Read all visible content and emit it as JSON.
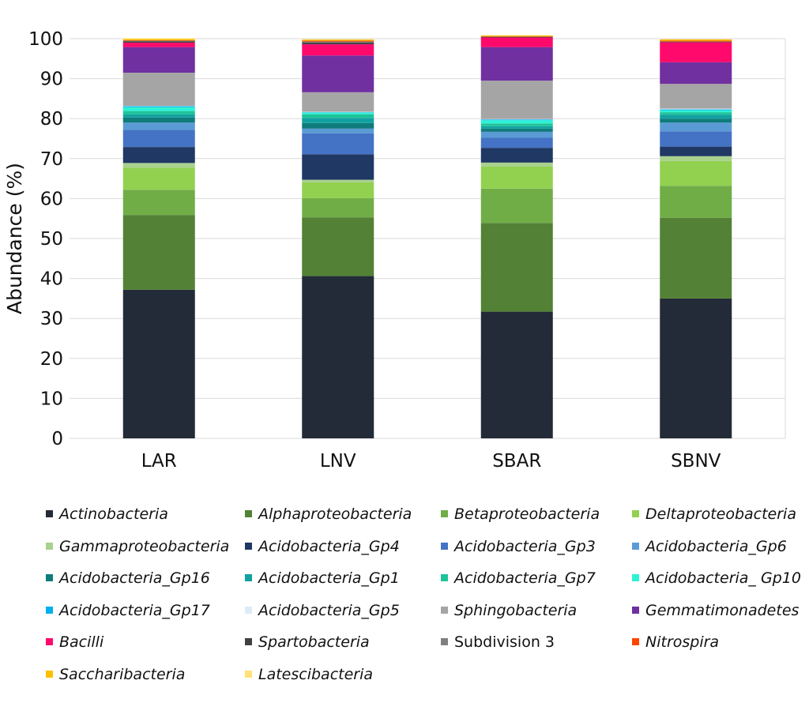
{
  "chart_data": {
    "type": "bar",
    "stacked": true,
    "ylabel": "Abundance (%)",
    "ylim": [
      0,
      100
    ],
    "yticks": [
      0,
      10,
      20,
      30,
      40,
      50,
      60,
      70,
      80,
      90,
      100
    ],
    "grid": true,
    "legend_position": "bottom",
    "categories": [
      "LAR",
      "LNV",
      "SBAR",
      "SBNV"
    ],
    "series": [
      {
        "name": "Actinobacteria",
        "color": "#232b38",
        "italic": true,
        "values": [
          37.2,
          40.6,
          31.7,
          35.0
        ]
      },
      {
        "name": "Alphaproteobacteria",
        "color": "#538135",
        "italic": true,
        "values": [
          18.7,
          14.7,
          22.2,
          20.2
        ]
      },
      {
        "name": "Betaproteobacteria",
        "color": "#70ad47",
        "italic": true,
        "values": [
          6.3,
          4.8,
          8.6,
          8.0
        ]
      },
      {
        "name": "Deltaproteobacteria",
        "color": "#92d050",
        "italic": true,
        "values": [
          5.5,
          4.0,
          5.5,
          6.2
        ]
      },
      {
        "name": "Gammaproteobacteria",
        "color": "#a9d18e",
        "italic": true,
        "values": [
          1.2,
          0.6,
          1.0,
          1.2
        ]
      },
      {
        "name": "Acidobacteria_Gp4",
        "color": "#203864",
        "italic": true,
        "values": [
          4.0,
          6.4,
          3.7,
          2.4
        ]
      },
      {
        "name": "Acidobacteria_Gp3",
        "color": "#4472c4",
        "italic": true,
        "values": [
          4.3,
          5.2,
          2.5,
          3.8
        ]
      },
      {
        "name": "Acidobacteria_Gp6",
        "color": "#5b9bd5",
        "italic": true,
        "values": [
          1.8,
          1.2,
          1.5,
          2.2
        ]
      },
      {
        "name": "Acidobacteria_Gp16",
        "color": "#0f7b7b",
        "italic": true,
        "values": [
          1.3,
          1.4,
          0.8,
          1.0
        ]
      },
      {
        "name": "Acidobacteria_Gp1",
        "color": "#12a1a1",
        "italic": true,
        "values": [
          0.8,
          1.3,
          0.6,
          1.0
        ]
      },
      {
        "name": "Acidobacteria_Gp7",
        "color": "#1fc39a",
        "italic": true,
        "values": [
          0.8,
          0.9,
          0.7,
          0.6
        ]
      },
      {
        "name": "Acidobacteria_ Gp10",
        "color": "#2ef2d6",
        "italic": true,
        "values": [
          1.0,
          0.4,
          0.8,
          0.5
        ]
      },
      {
        "name": "Acidobacteria_Gp17",
        "color": "#00b0f0",
        "italic": true,
        "values": [
          0.2,
          0.1,
          0.2,
          0.2
        ]
      },
      {
        "name": "Acidobacteria_Gp5",
        "color": "#deebf7",
        "italic": true,
        "values": [
          0.1,
          0.1,
          0.1,
          0.2
        ]
      },
      {
        "name": "Sphingobacteria",
        "color": "#a5a5a5",
        "italic": true,
        "values": [
          8.3,
          4.9,
          9.6,
          6.2
        ]
      },
      {
        "name": "Gemmatimonadetes",
        "color": "#7030a0",
        "italic": true,
        "values": [
          6.4,
          9.2,
          8.4,
          5.4
        ]
      },
      {
        "name": "Bacilli",
        "color": "#ff0a6c",
        "italic": true,
        "values": [
          1.1,
          2.8,
          2.4,
          5.0
        ]
      },
      {
        "name": "Spartobacteria",
        "color": "#404040",
        "italic": true,
        "values": [
          0.3,
          0.4,
          0.1,
          0.1
        ]
      },
      {
        "name": "Subdivision 3",
        "color": "#7f7f7f",
        "italic": false,
        "values": [
          0.2,
          0.3,
          0.1,
          0.1
        ]
      },
      {
        "name": "Nitrospira",
        "color": "#ff4500",
        "italic": true,
        "values": [
          0.1,
          0.2,
          0.1,
          0.2
        ]
      },
      {
        "name": "Saccharibacteria",
        "color": "#ffc000",
        "italic": true,
        "values": [
          0.3,
          0.2,
          0.2,
          0.3
        ]
      },
      {
        "name": "Latescibacteria",
        "color": "#ffe07a",
        "italic": true,
        "values": [
          0.2,
          0.2,
          0.1,
          0.1
        ]
      }
    ]
  }
}
